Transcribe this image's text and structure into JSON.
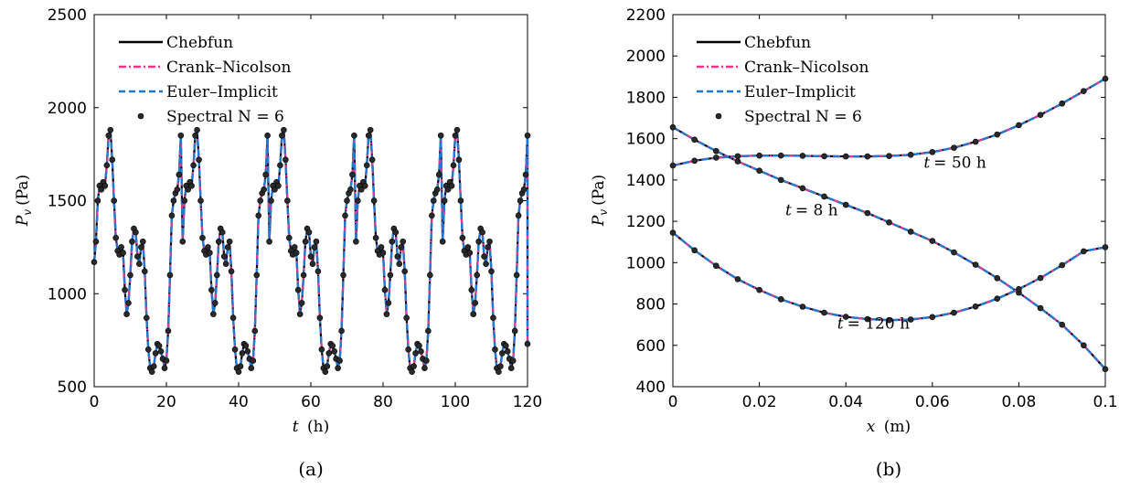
{
  "colors": {
    "chebfun": "#000000",
    "crank_nicolson": "#e8368c",
    "euler_implicit": "#1f78d4",
    "spectral": "#2a2a2a"
  },
  "chart_data": [
    {
      "type": "line",
      "caption": "(a)",
      "xlabel_var": "t",
      "xlabel_unit": "(h)",
      "ylabel_var": "P",
      "ylabel_sub": "v",
      "ylabel_unit": "(Pa)",
      "xlim": [
        0,
        120
      ],
      "ylim": [
        500,
        2500
      ],
      "xticks": [
        0,
        20,
        40,
        60,
        80,
        100,
        120
      ],
      "yticks": [
        500,
        1000,
        1500,
        2000,
        2500
      ],
      "grid": false,
      "legend_position": "top-left",
      "legend": [
        "Chebfun",
        "Crank–Nicolson",
        "Euler–Implicit",
        "Spectral N = 6"
      ],
      "series": [
        {
          "name": "Chebfun",
          "x": [
            0,
            0.5,
            1,
            1.5,
            2,
            2.5,
            3,
            3.5,
            4,
            4.5,
            5,
            5.5,
            6,
            6.5,
            7,
            7.5,
            8,
            8.5,
            9,
            9.5,
            10,
            10.5,
            11,
            11.5,
            12,
            12.5,
            13,
            13.5,
            14,
            14.5,
            15,
            15.5,
            16,
            16.5,
            17,
            17.5,
            18,
            18.5,
            19,
            19.5,
            20,
            20.5,
            21,
            21.5,
            22,
            22.5,
            23,
            23.5,
            24
          ],
          "y": [
            1170,
            1280,
            1500,
            1580,
            1560,
            1600,
            1580,
            1690,
            1850,
            1880,
            1720,
            1500,
            1300,
            1230,
            1210,
            1250,
            1220,
            1020,
            890,
            950,
            1100,
            1280,
            1350,
            1330,
            1200,
            1160,
            1250,
            1280,
            1120,
            870,
            700,
            600,
            580,
            610,
            680,
            730,
            720,
            690,
            650,
            600,
            640,
            800,
            1100,
            1420,
            1500,
            1540,
            1560,
            1640,
            1850
          ]
        },
        {
          "name": "Crank–Nicolson",
          "x": [
            0,
            0.5,
            1,
            1.5,
            2,
            2.5,
            3,
            3.5,
            4,
            4.5,
            5,
            5.5,
            6,
            6.5,
            7,
            7.5,
            8,
            8.5,
            9,
            9.5,
            10,
            10.5,
            11,
            11.5,
            12,
            12.5,
            13,
            13.5,
            14,
            14.5,
            15,
            15.5,
            16,
            16.5,
            17,
            17.5,
            18,
            18.5,
            19,
            19.5,
            20,
            20.5,
            21,
            21.5,
            22,
            22.5,
            23,
            23.5,
            24
          ],
          "y": [
            1170,
            1280,
            1500,
            1580,
            1560,
            1600,
            1580,
            1690,
            1850,
            1880,
            1720,
            1500,
            1300,
            1230,
            1210,
            1250,
            1220,
            1020,
            890,
            950,
            1100,
            1280,
            1350,
            1330,
            1200,
            1160,
            1250,
            1280,
            1120,
            870,
            700,
            600,
            580,
            610,
            680,
            730,
            720,
            690,
            650,
            600,
            640,
            800,
            1100,
            1420,
            1500,
            1540,
            1560,
            1640,
            1850
          ]
        },
        {
          "name": "Euler–Implicit",
          "x": [
            0,
            0.5,
            1,
            1.5,
            2,
            2.5,
            3,
            3.5,
            4,
            4.5,
            5,
            5.5,
            6,
            6.5,
            7,
            7.5,
            8,
            8.5,
            9,
            9.5,
            10,
            10.5,
            11,
            11.5,
            12,
            12.5,
            13,
            13.5,
            14,
            14.5,
            15,
            15.5,
            16,
            16.5,
            17,
            17.5,
            18,
            18.5,
            19,
            19.5,
            20,
            20.5,
            21,
            21.5,
            22,
            22.5,
            23,
            23.5,
            24
          ],
          "y": [
            1170,
            1280,
            1500,
            1580,
            1560,
            1600,
            1580,
            1690,
            1850,
            1880,
            1720,
            1500,
            1300,
            1230,
            1210,
            1250,
            1220,
            1020,
            890,
            950,
            1100,
            1280,
            1350,
            1330,
            1200,
            1160,
            1250,
            1280,
            1120,
            870,
            700,
            600,
            580,
            610,
            680,
            730,
            720,
            690,
            650,
            600,
            640,
            800,
            1100,
            1420,
            1500,
            1540,
            1560,
            1640,
            1850
          ]
        },
        {
          "name": "Spectral N = 6",
          "x": [
            0,
            0.5,
            1,
            1.5,
            2,
            2.5,
            3,
            3.5,
            4,
            4.5,
            5,
            5.5,
            6,
            6.5,
            7,
            7.5,
            8,
            8.5,
            9,
            9.5,
            10,
            10.5,
            11,
            11.5,
            12,
            12.5,
            13,
            13.5,
            14,
            14.5,
            15,
            15.5,
            16,
            16.5,
            17,
            17.5,
            18,
            18.5,
            19,
            19.5,
            20,
            20.5,
            21,
            21.5,
            22,
            22.5,
            23,
            23.5,
            24
          ],
          "y": [
            1170,
            1280,
            1500,
            1580,
            1560,
            1600,
            1580,
            1690,
            1850,
            1880,
            1720,
            1500,
            1300,
            1230,
            1210,
            1250,
            1220,
            1020,
            890,
            950,
            1100,
            1280,
            1350,
            1330,
            1200,
            1160,
            1250,
            1280,
            1120,
            870,
            700,
            600,
            580,
            610,
            680,
            730,
            720,
            690,
            650,
            600,
            640,
            800,
            1100,
            1420,
            1500,
            1540,
            1560,
            1640,
            1850
          ]
        }
      ],
      "periodic_extension": {
        "period": 24,
        "xmax": 120
      }
    },
    {
      "type": "line",
      "caption": "(b)",
      "xlabel_var": "x",
      "xlabel_unit": "(m)",
      "ylabel_var": "P",
      "ylabel_sub": "v",
      "ylabel_unit": "(Pa)",
      "xlim": [
        0,
        0.1
      ],
      "ylim": [
        400,
        2200
      ],
      "xticks": [
        0,
        0.02,
        0.04,
        0.06,
        0.08,
        0.1
      ],
      "yticks": [
        400,
        600,
        800,
        1000,
        1200,
        1400,
        1600,
        1800,
        2000,
        2200
      ],
      "grid": false,
      "legend_position": "top-left",
      "legend": [
        "Chebfun",
        "Crank–Nicolson",
        "Euler–Implicit",
        "Spectral N = 6"
      ],
      "curves": [
        {
          "annotation": "t = 8 h",
          "x": [
            0,
            0.005,
            0.01,
            0.015,
            0.02,
            0.025,
            0.03,
            0.035,
            0.04,
            0.045,
            0.05,
            0.055,
            0.06,
            0.065,
            0.07,
            0.075,
            0.08,
            0.085,
            0.09,
            0.095,
            0.1
          ],
          "y": [
            1655,
            1595,
            1540,
            1490,
            1445,
            1400,
            1360,
            1320,
            1280,
            1240,
            1195,
            1150,
            1105,
            1050,
            990,
            925,
            855,
            780,
            700,
            600,
            485
          ]
        },
        {
          "annotation": "t = 50 h",
          "x": [
            0,
            0.005,
            0.01,
            0.015,
            0.02,
            0.025,
            0.03,
            0.035,
            0.04,
            0.045,
            0.05,
            0.055,
            0.06,
            0.065,
            0.07,
            0.075,
            0.08,
            0.085,
            0.09,
            0.095,
            0.1
          ],
          "y": [
            1470,
            1493,
            1508,
            1515,
            1518,
            1518,
            1517,
            1515,
            1514,
            1514,
            1516,
            1522,
            1535,
            1556,
            1585,
            1620,
            1665,
            1715,
            1770,
            1830,
            1890
          ]
        },
        {
          "annotation": "t = 120 h",
          "x": [
            0,
            0.005,
            0.01,
            0.015,
            0.02,
            0.025,
            0.03,
            0.035,
            0.04,
            0.045,
            0.05,
            0.055,
            0.06,
            0.065,
            0.07,
            0.075,
            0.08,
            0.085,
            0.09,
            0.095,
            0.1
          ],
          "y": [
            1145,
            1060,
            985,
            920,
            868,
            823,
            787,
            758,
            738,
            727,
            722,
            725,
            737,
            758,
            788,
            826,
            872,
            926,
            988,
            1055,
            1075
          ]
        }
      ]
    }
  ]
}
